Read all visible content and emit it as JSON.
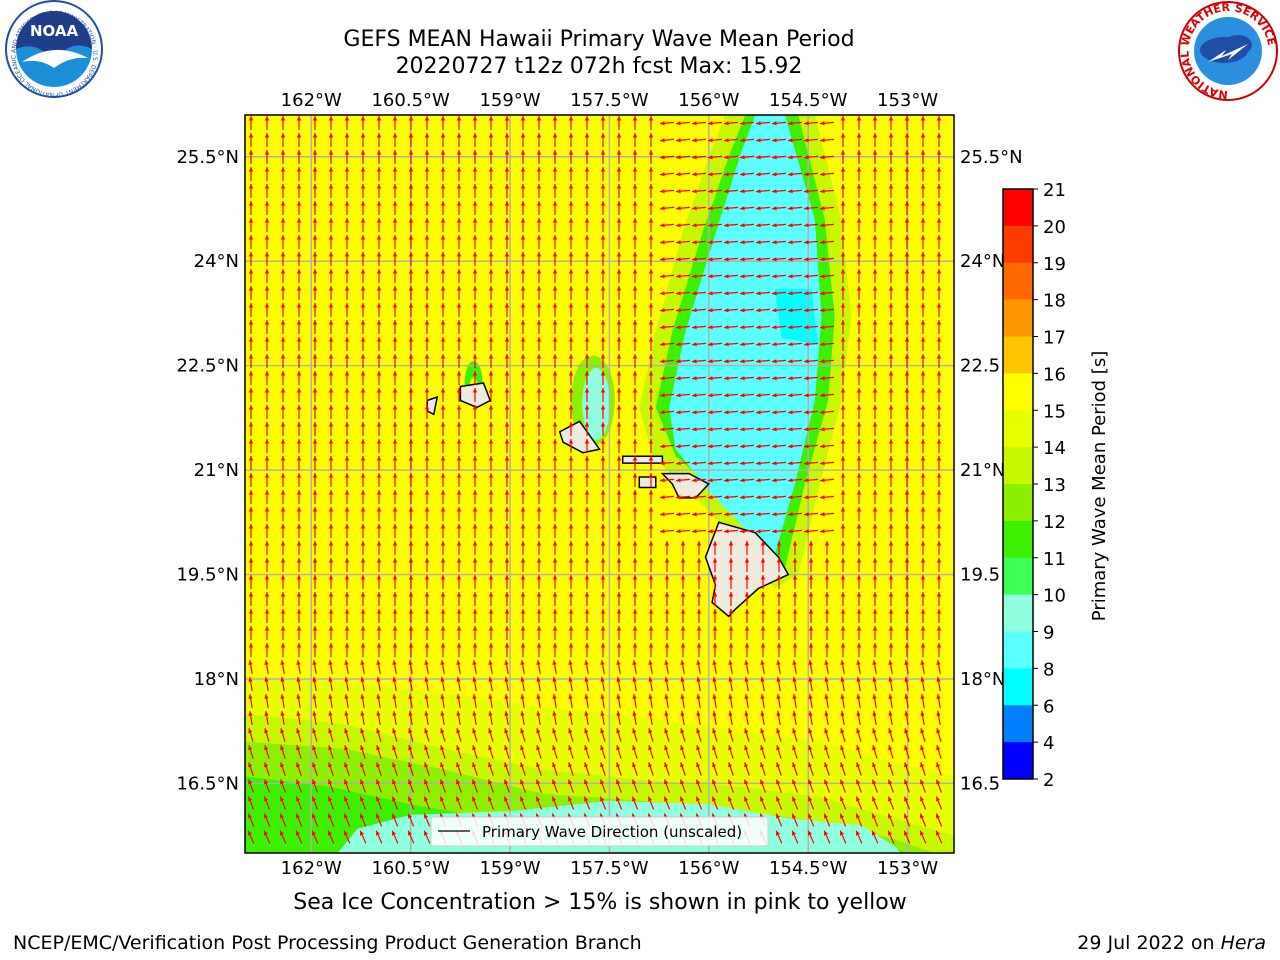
{
  "title": {
    "line1": "GEFS MEAN Hawaii Primary Wave Mean Period",
    "line2": "20220727 t12z 072h fcst   Max: 15.92"
  },
  "map": {
    "lon_ticks": [
      "162°W",
      "160.5°W",
      "159°W",
      "157.5°W",
      "156°W",
      "154.5°W",
      "153°W"
    ],
    "lat_ticks_left": [
      "25.5°N",
      "24°N",
      "22.5°N",
      "21°N",
      "19.5°N",
      "18°N",
      "16.5°N"
    ],
    "lat_ticks_right": [
      "25.5°N",
      "24°N",
      "22.5",
      "21°N",
      "19.5",
      "18°N",
      "16.5"
    ],
    "lon_range": [
      -163,
      -152.3
    ],
    "lat_range": [
      15.5,
      26.1
    ],
    "legend_label": "Primary Wave Direction (unscaled)",
    "arrow_color": "#ff0000",
    "land_color": "#efebdc"
  },
  "colorbar": {
    "label": "Primary Wave Mean Period [s]",
    "ticks": [
      "21",
      "20",
      "19",
      "18",
      "17",
      "16",
      "15",
      "14",
      "13",
      "12",
      "11",
      "10",
      "9",
      "8",
      "6",
      "4",
      "2"
    ],
    "colors": [
      "#ff0000",
      "#ff3c00",
      "#ff6a00",
      "#ff9600",
      "#ffc400",
      "#ffff00",
      "#e8ff00",
      "#c8f800",
      "#8df000",
      "#3cf000",
      "#3cff55",
      "#90ffe0",
      "#5cffff",
      "#00ffff",
      "#0080ff",
      "#0000ff"
    ]
  },
  "caption": "Sea Ice Concentration > 15% is shown in pink to yellow",
  "footer": {
    "left": "NCEP/EMC/Verification Post Processing Product Generation Branch",
    "date": "29 Jul 2022 on ",
    "machine": "Hera"
  },
  "logos": {
    "noaa_text": "NOAA",
    "noaa_ring": "NATIONAL OCEANIC AND ATMOSPHERIC ADMINISTRATION · U.S. DEPARTMENT OF COMMERCE",
    "nws_ring": "NATIONAL WEATHER SERVICE"
  }
}
